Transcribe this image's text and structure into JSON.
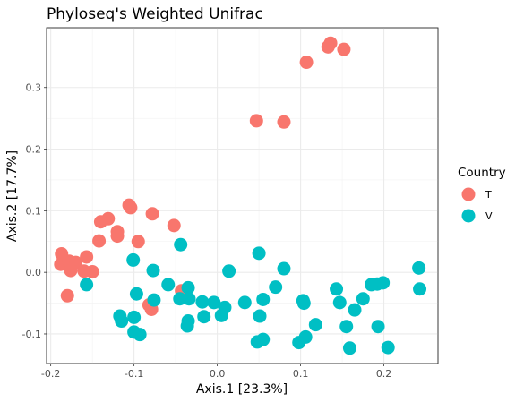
{
  "chart_data": {
    "type": "scatter",
    "title": "Phyloseq's Weighted Unifrac",
    "xlabel": "Axis.1   [23.3%]",
    "ylabel": "Axis.2   [17.7%]",
    "xlim": [
      -0.205,
      0.265
    ],
    "ylim": [
      -0.148,
      0.397
    ],
    "x_ticks": [
      -0.2,
      -0.1,
      0.0,
      0.1,
      0.2
    ],
    "x_tick_labels": [
      "-0.2",
      "-0.1",
      "0.0",
      "0.1",
      "0.2"
    ],
    "y_ticks": [
      -0.1,
      0.0,
      0.1,
      0.2,
      0.3
    ],
    "y_tick_labels": [
      "-0.1",
      "0.0",
      "0.1",
      "0.2",
      "0.3"
    ],
    "grid": true,
    "legend": {
      "title": "Country",
      "placement": "right"
    },
    "series": [
      {
        "name": "T",
        "color": "#F8766D",
        "points": [
          [
            0.136,
            0.372
          ],
          [
            0.133,
            0.366
          ],
          [
            0.152,
            0.362
          ],
          [
            0.107,
            0.341
          ],
          [
            0.047,
            0.246
          ],
          [
            0.08,
            0.244
          ],
          [
            -0.106,
            0.109
          ],
          [
            -0.104,
            0.105
          ],
          [
            -0.131,
            0.087
          ],
          [
            -0.14,
            0.082
          ],
          [
            -0.078,
            0.095
          ],
          [
            -0.12,
            0.066
          ],
          [
            -0.12,
            0.059
          ],
          [
            -0.052,
            0.076
          ],
          [
            -0.142,
            0.051
          ],
          [
            -0.095,
            0.05
          ],
          [
            -0.187,
            0.03
          ],
          [
            -0.188,
            0.013
          ],
          [
            -0.178,
            0.018
          ],
          [
            -0.17,
            0.016
          ],
          [
            -0.157,
            0.025
          ],
          [
            -0.16,
            0.002
          ],
          [
            -0.15,
            0.001
          ],
          [
            -0.176,
            0.003
          ],
          [
            -0.18,
            -0.038
          ],
          [
            -0.043,
            -0.03
          ],
          [
            -0.079,
            -0.06
          ],
          [
            -0.082,
            -0.053
          ]
        ]
      },
      {
        "name": "V",
        "color": "#00BFC4",
        "points": [
          [
            -0.044,
            0.045
          ],
          [
            -0.101,
            0.02
          ],
          [
            0.05,
            0.031
          ],
          [
            0.08,
            0.006
          ],
          [
            0.242,
            0.007
          ],
          [
            0.014,
            0.002
          ],
          [
            -0.077,
            0.003
          ],
          [
            -0.157,
            -0.02
          ],
          [
            -0.059,
            -0.02
          ],
          [
            -0.035,
            -0.025
          ],
          [
            0.07,
            -0.024
          ],
          [
            0.192,
            -0.019
          ],
          [
            0.199,
            -0.017
          ],
          [
            0.185,
            -0.02
          ],
          [
            0.243,
            -0.027
          ],
          [
            0.143,
            -0.027
          ],
          [
            0.055,
            -0.044
          ],
          [
            0.103,
            -0.046
          ],
          [
            0.104,
            -0.05
          ],
          [
            0.147,
            -0.049
          ],
          [
            0.165,
            -0.061
          ],
          [
            0.175,
            -0.043
          ],
          [
            -0.097,
            -0.035
          ],
          [
            -0.076,
            -0.045
          ],
          [
            -0.045,
            -0.043
          ],
          [
            -0.034,
            -0.043
          ],
          [
            -0.018,
            -0.048
          ],
          [
            -0.004,
            -0.049
          ],
          [
            0.033,
            -0.049
          ],
          [
            0.009,
            -0.057
          ],
          [
            0.005,
            -0.07
          ],
          [
            -0.016,
            -0.072
          ],
          [
            -0.035,
            -0.079
          ],
          [
            -0.036,
            -0.087
          ],
          [
            0.051,
            -0.071
          ],
          [
            -0.1,
            -0.073
          ],
          [
            -0.117,
            -0.071
          ],
          [
            -0.115,
            -0.079
          ],
          [
            -0.1,
            -0.097
          ],
          [
            -0.093,
            -0.101
          ],
          [
            0.118,
            -0.085
          ],
          [
            0.155,
            -0.088
          ],
          [
            0.193,
            -0.088
          ],
          [
            0.106,
            -0.105
          ],
          [
            0.098,
            -0.114
          ],
          [
            0.055,
            -0.109
          ],
          [
            0.048,
            -0.113
          ],
          [
            0.159,
            -0.123
          ],
          [
            0.205,
            -0.122
          ]
        ]
      }
    ]
  }
}
